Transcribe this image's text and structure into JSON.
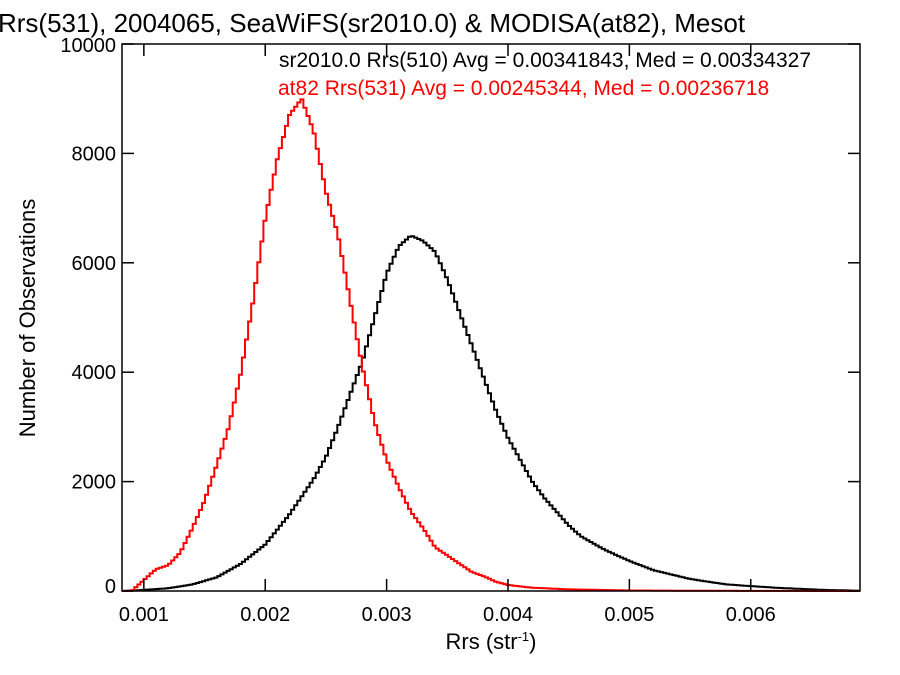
{
  "chart_data": {
    "type": "line",
    "style": "histogram-step",
    "title": "Rrs(531), 2004065, SeaWiFS(sr2010.0) & MODISA(at82), Mesot",
    "xlabel_main": "Rrs (str",
    "xlabel_sup": "-1",
    "xlabel_close": ")",
    "ylabel": "Number of Observations",
    "xlim": [
      0.00082,
      0.0069
    ],
    "ylim": [
      0,
      10000
    ],
    "x_ticks": [
      0.001,
      0.002,
      0.003,
      0.004,
      0.005,
      0.006
    ],
    "x_tick_labels": [
      "0.001",
      "0.002",
      "0.003",
      "0.004",
      "0.005",
      "0.006"
    ],
    "y_ticks": [
      0,
      2000,
      4000,
      6000,
      8000,
      10000
    ],
    "y_tick_labels": [
      "0",
      "2000",
      "4000",
      "6000",
      "8000",
      "10000"
    ],
    "grid": false,
    "annotations": [
      {
        "text": "sr2010.0 Rrs(510) Avg = 0.00341843, Med = 0.00334327",
        "color": "#000000"
      },
      {
        "text": "at82 Rrs(531) Avg = 0.00245344, Med = 0.00236718",
        "color": "#ff0000"
      }
    ],
    "series": [
      {
        "color": "#000000",
        "x": [
          0.00082,
          0.001,
          0.0012,
          0.0014,
          0.0016,
          0.0018,
          0.002,
          0.0022,
          0.0024,
          0.0025,
          0.0026,
          0.0027,
          0.0028,
          0.0029,
          0.003,
          0.0031,
          0.0032,
          0.0033,
          0.0034,
          0.0035,
          0.0036,
          0.0037,
          0.0038,
          0.0039,
          0.004,
          0.0041,
          0.0042,
          0.0043,
          0.0044,
          0.0045,
          0.0046,
          0.0048,
          0.005,
          0.0052,
          0.0055,
          0.0058,
          0.0062,
          0.0066,
          0.0069
        ],
        "y": [
          0,
          20,
          50,
          120,
          250,
          500,
          850,
          1400,
          2050,
          2450,
          3000,
          3600,
          4200,
          5000,
          5800,
          6300,
          6500,
          6400,
          6200,
          5700,
          5100,
          4500,
          3900,
          3300,
          2800,
          2400,
          2000,
          1700,
          1450,
          1200,
          1000,
          750,
          550,
          380,
          220,
          120,
          60,
          20,
          5
        ]
      },
      {
        "color": "#ff0000",
        "x": [
          0.00082,
          0.0009,
          0.001,
          0.0011,
          0.0012,
          0.0013,
          0.0014,
          0.0015,
          0.0016,
          0.0017,
          0.0018,
          0.0019,
          0.002,
          0.0021,
          0.0022,
          0.0023,
          0.0024,
          0.0025,
          0.0026,
          0.0027,
          0.0028,
          0.0029,
          0.003,
          0.0031,
          0.0032,
          0.0033,
          0.0034,
          0.0035,
          0.0036,
          0.0037,
          0.0038,
          0.0039,
          0.004,
          0.0042,
          0.0045,
          0.005,
          0.0055,
          0.006,
          0.0069
        ],
        "y": [
          0,
          0,
          200,
          400,
          470,
          700,
          1150,
          1650,
          2300,
          3000,
          4000,
          5300,
          6800,
          7900,
          8700,
          9000,
          8400,
          7300,
          6500,
          5300,
          4100,
          3100,
          2400,
          1900,
          1450,
          1150,
          800,
          650,
          500,
          350,
          270,
          170,
          110,
          60,
          30,
          10,
          5,
          2,
          0
        ]
      }
    ]
  }
}
